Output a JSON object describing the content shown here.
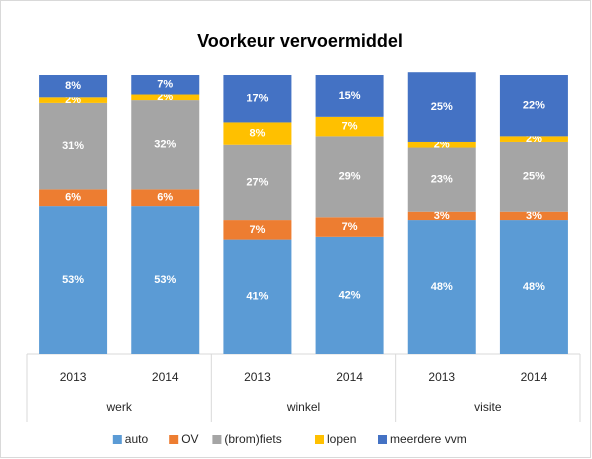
{
  "chart_data": {
    "type": "stacked_bar",
    "title": "Voorkeur vervoermiddel",
    "categories": [
      "2013",
      "2014",
      "2013",
      "2014",
      "2013",
      "2014"
    ],
    "groups": [
      "werk",
      "winkel",
      "visite"
    ],
    "ylim": [
      0,
      100
    ],
    "legend": "bottom",
    "series": [
      {
        "name": "auto",
        "color": "#5b9bd5",
        "values": [
          53,
          53,
          41,
          42,
          48,
          48
        ],
        "value_labels": [
          "53%",
          "53%",
          "41%",
          "42%",
          "48%",
          "48%"
        ]
      },
      {
        "name": "OV",
        "color": "#ed7d31",
        "values": [
          6,
          6,
          7,
          7,
          3,
          3
        ],
        "value_labels": [
          "6%",
          "6%",
          "7%",
          "7%",
          "3%",
          "3%"
        ]
      },
      {
        "name": "(brom)fiets",
        "color": "#a5a5a5",
        "values": [
          31,
          32,
          27,
          29,
          23,
          25
        ],
        "value_labels": [
          "31%",
          "32%",
          "27%",
          "29%",
          "23%",
          "25%"
        ]
      },
      {
        "name": "lopen",
        "color": "#ffc000",
        "values": [
          2,
          2,
          8,
          7,
          2,
          2
        ],
        "value_labels": [
          "2%",
          "2%",
          "8%",
          "7%",
          "2%",
          "2%"
        ]
      },
      {
        "name": "meerdere vvm",
        "color": "#4472c4",
        "values": [
          8,
          7,
          17,
          15,
          25,
          22
        ],
        "value_labels": [
          "8%",
          "7%",
          "17%",
          "15%",
          "25%",
          "22%"
        ]
      }
    ]
  }
}
